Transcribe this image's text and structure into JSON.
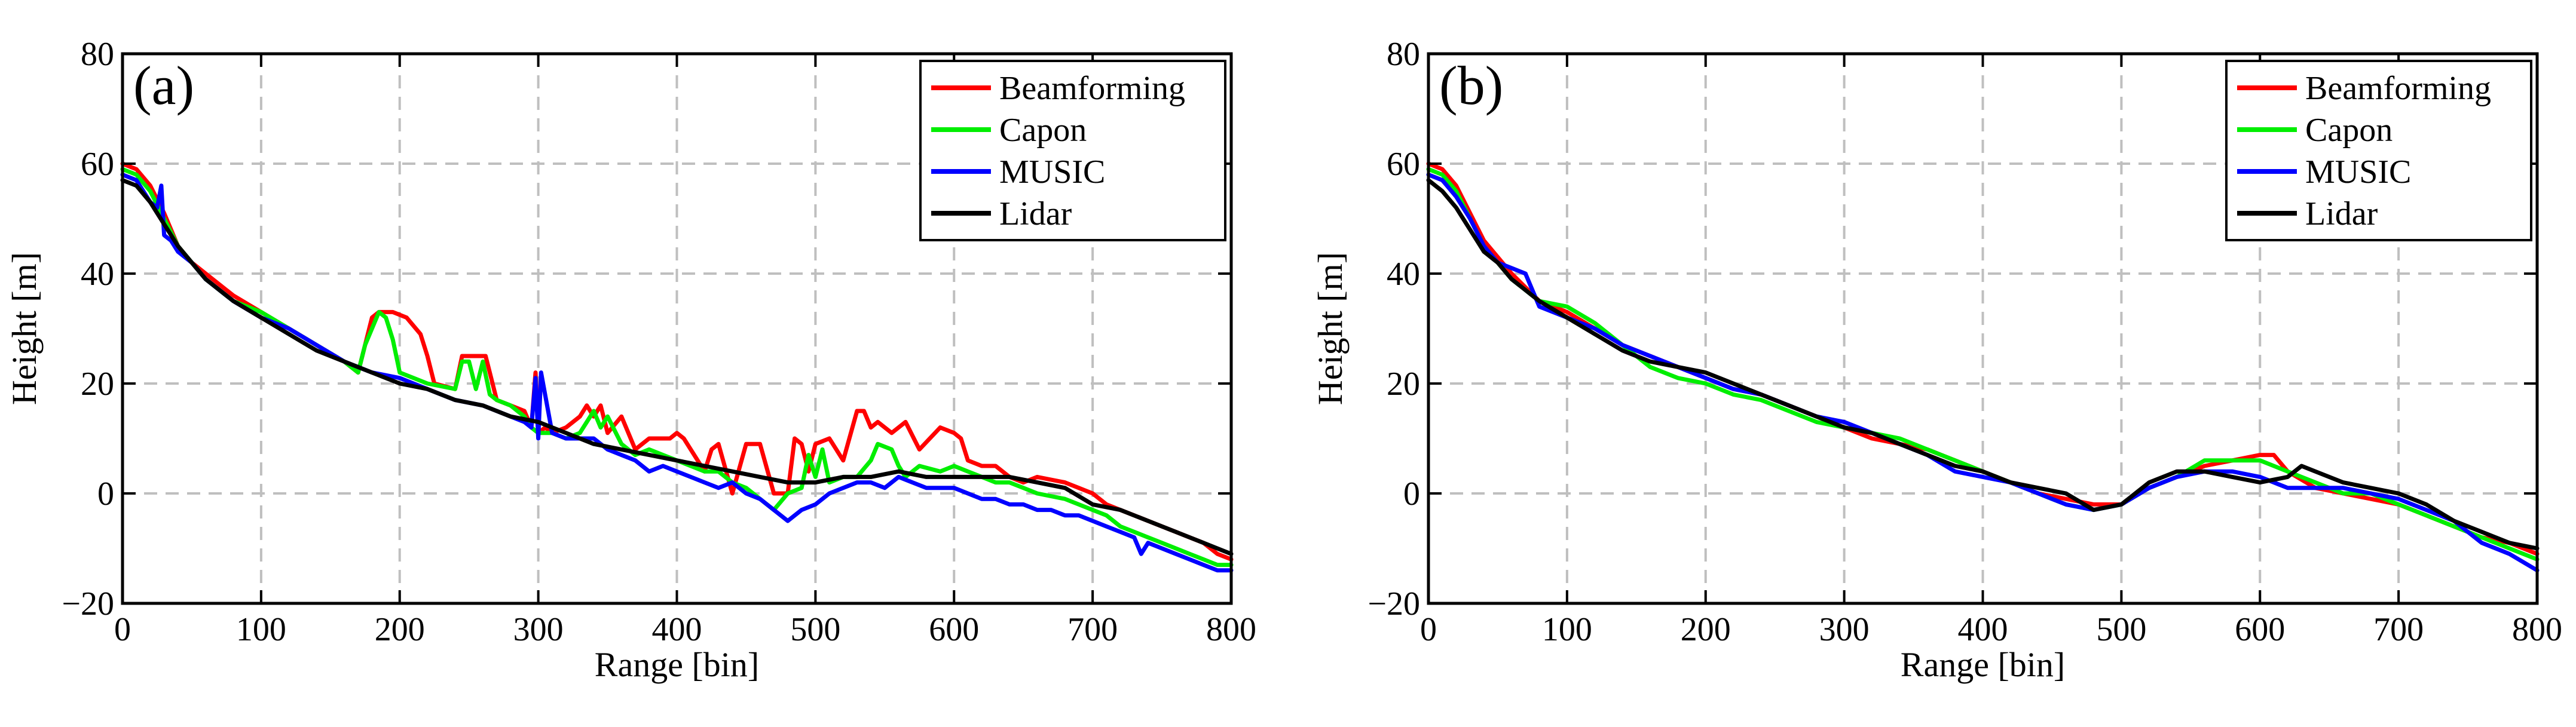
{
  "chart_data": [
    {
      "type": "line",
      "panel": "(a)",
      "xlabel": "Range [bin]",
      "ylabel": "Height [m]",
      "xlim": [
        0,
        800
      ],
      "ylim": [
        -20,
        80
      ],
      "xticks": [
        0,
        100,
        200,
        300,
        400,
        500,
        600,
        700,
        800
      ],
      "yticks": [
        -20,
        0,
        20,
        40,
        60,
        80
      ],
      "ytick_labels": [
        "−20",
        "0",
        "20",
        "40",
        "60",
        "80"
      ],
      "grid": true,
      "legend_position": "top-right",
      "series": [
        {
          "name": "Beamforming",
          "color": "#ff0000",
          "x": [
            0,
            10,
            20,
            30,
            40,
            50,
            60,
            80,
            100,
            120,
            140,
            160,
            170,
            175,
            180,
            185,
            195,
            205,
            215,
            220,
            225,
            240,
            245,
            250,
            258,
            262,
            270,
            280,
            290,
            295,
            298,
            300,
            305,
            310,
            320,
            330,
            335,
            340,
            345,
            350,
            360,
            370,
            380,
            390,
            395,
            400,
            405,
            410,
            420,
            425,
            430,
            440,
            450,
            460,
            470,
            480,
            485,
            490,
            495,
            500,
            510,
            520,
            530,
            535,
            540,
            545,
            555,
            565,
            575,
            590,
            600,
            605,
            610,
            620,
            630,
            640,
            650,
            660,
            680,
            690,
            700,
            710,
            720,
            730,
            740,
            750,
            760,
            770,
            780,
            790,
            800
          ],
          "y": [
            60,
            59,
            56,
            51,
            45,
            42,
            40,
            36,
            33,
            30,
            27,
            24,
            22,
            27,
            32,
            33,
            33,
            32,
            29,
            25,
            20,
            19,
            25,
            25,
            25,
            25,
            17,
            16,
            15,
            12,
            22,
            11,
            12,
            11,
            12,
            14,
            16,
            14,
            16,
            11,
            14,
            8,
            10,
            10,
            10,
            11,
            10,
            8,
            4,
            8,
            9,
            0,
            9,
            9,
            0,
            0,
            10,
            9,
            4,
            9,
            10,
            6,
            15,
            15,
            12,
            13,
            11,
            13,
            8,
            12,
            11,
            10,
            6,
            5,
            5,
            3,
            2,
            3,
            2,
            1,
            0,
            -2,
            -3,
            -4,
            -5,
            -6,
            -7,
            -8,
            -9,
            -11,
            -12
          ]
        },
        {
          "name": "Capon",
          "color": "#00ee00",
          "x": [
            0,
            10,
            20,
            30,
            40,
            50,
            60,
            80,
            100,
            120,
            140,
            160,
            170,
            175,
            180,
            185,
            190,
            195,
            200,
            210,
            220,
            240,
            245,
            250,
            255,
            260,
            265,
            270,
            280,
            290,
            295,
            300,
            310,
            320,
            330,
            340,
            345,
            350,
            360,
            370,
            380,
            390,
            400,
            410,
            420,
            430,
            440,
            450,
            460,
            470,
            480,
            490,
            495,
            500,
            505,
            510,
            520,
            530,
            540,
            545,
            555,
            560,
            565,
            575,
            590,
            600,
            610,
            620,
            630,
            640,
            650,
            660,
            680,
            690,
            700,
            710,
            720,
            730,
            740,
            750,
            760,
            770,
            780,
            790,
            800
          ],
          "y": [
            59,
            58,
            55,
            50,
            45,
            42,
            39,
            35,
            33,
            30,
            27,
            24,
            22,
            27,
            30,
            33,
            32,
            28,
            22,
            21,
            20,
            19,
            24,
            24,
            19,
            24,
            18,
            17,
            16,
            14,
            12,
            11,
            11,
            10,
            11,
            15,
            12,
            14,
            9,
            7,
            8,
            7,
            6,
            5,
            4,
            4,
            2,
            1,
            -1,
            -3,
            0,
            1,
            7,
            3,
            8,
            2,
            3,
            3,
            6,
            9,
            8,
            5,
            3,
            5,
            4,
            5,
            4,
            3,
            2,
            2,
            1,
            0,
            -1,
            -2,
            -3,
            -4,
            -6,
            -7,
            -8,
            -9,
            -10,
            -11,
            -12,
            -13,
            -13
          ]
        },
        {
          "name": "MUSIC",
          "color": "#0000ff",
          "x": [
            0,
            10,
            20,
            25,
            28,
            30,
            35,
            40,
            50,
            60,
            80,
            100,
            120,
            140,
            160,
            180,
            200,
            220,
            240,
            260,
            280,
            290,
            295,
            298,
            300,
            302,
            310,
            320,
            330,
            340,
            350,
            360,
            370,
            380,
            390,
            400,
            410,
            420,
            430,
            440,
            450,
            460,
            470,
            480,
            490,
            500,
            510,
            520,
            530,
            540,
            550,
            560,
            570,
            580,
            590,
            600,
            610,
            620,
            630,
            640,
            650,
            660,
            670,
            680,
            690,
            700,
            710,
            720,
            730,
            735,
            740,
            750,
            760,
            770,
            780,
            790,
            800
          ],
          "y": [
            58,
            57,
            53,
            52,
            56,
            47,
            46,
            44,
            42,
            39,
            35,
            32,
            30,
            27,
            24,
            22,
            21,
            19,
            17,
            16,
            14,
            13,
            12,
            21,
            10,
            22,
            11,
            10,
            10,
            10,
            8,
            7,
            6,
            4,
            5,
            4,
            3,
            2,
            1,
            2,
            0,
            -1,
            -3,
            -5,
            -3,
            -2,
            0,
            1,
            2,
            2,
            1,
            3,
            2,
            1,
            1,
            1,
            0,
            -1,
            -1,
            -2,
            -2,
            -3,
            -3,
            -4,
            -4,
            -5,
            -6,
            -7,
            -8,
            -11,
            -9,
            -10,
            -11,
            -12,
            -13,
            -14,
            -14
          ]
        },
        {
          "name": "Lidar",
          "color": "#000000",
          "x": [
            0,
            10,
            20,
            30,
            40,
            50,
            60,
            80,
            100,
            120,
            140,
            160,
            180,
            200,
            220,
            240,
            260,
            280,
            300,
            320,
            340,
            360,
            380,
            400,
            420,
            440,
            460,
            480,
            500,
            520,
            540,
            560,
            580,
            600,
            620,
            640,
            660,
            680,
            700,
            720,
            740,
            760,
            780,
            800
          ],
          "y": [
            57,
            56,
            53,
            49,
            45,
            42,
            39,
            35,
            32,
            29,
            26,
            24,
            22,
            20,
            19,
            17,
            16,
            14,
            13,
            11,
            9,
            8,
            7,
            6,
            5,
            4,
            3,
            2,
            2,
            3,
            3,
            4,
            3,
            3,
            3,
            3,
            2,
            1,
            -2,
            -3,
            -5,
            -7,
            -9,
            -11
          ]
        }
      ]
    },
    {
      "type": "line",
      "panel": "(b)",
      "xlabel": "Range [bin]",
      "ylabel": "Height [m]",
      "xlim": [
        0,
        800
      ],
      "ylim": [
        -20,
        80
      ],
      "xticks": [
        0,
        100,
        200,
        300,
        400,
        500,
        600,
        700,
        800
      ],
      "yticks": [
        -20,
        0,
        20,
        40,
        60,
        80
      ],
      "ytick_labels": [
        "−20",
        "0",
        "20",
        "40",
        "60",
        "80"
      ],
      "grid": true,
      "legend_position": "top-right",
      "series": [
        {
          "name": "Beamforming",
          "color": "#ff0000",
          "x": [
            0,
            10,
            20,
            30,
            40,
            50,
            60,
            80,
            100,
            120,
            140,
            160,
            180,
            200,
            220,
            240,
            260,
            280,
            300,
            320,
            340,
            360,
            380,
            400,
            420,
            440,
            460,
            480,
            500,
            520,
            540,
            560,
            580,
            600,
            610,
            620,
            640,
            660,
            680,
            700,
            720,
            740,
            760,
            780,
            800
          ],
          "y": [
            60,
            59,
            56,
            51,
            46,
            43,
            40,
            35,
            33,
            30,
            27,
            25,
            23,
            21,
            19,
            18,
            16,
            14,
            12,
            10,
            9,
            8,
            6,
            4,
            2,
            0,
            -1,
            -2,
            -2,
            1,
            3,
            5,
            6,
            7,
            7,
            4,
            1,
            0,
            -1,
            -2,
            -4,
            -6,
            -8,
            -9,
            -11
          ]
        },
        {
          "name": "Capon",
          "color": "#00ee00",
          "x": [
            0,
            10,
            20,
            30,
            40,
            50,
            60,
            80,
            100,
            120,
            140,
            160,
            180,
            200,
            220,
            240,
            260,
            280,
            300,
            320,
            340,
            360,
            380,
            400,
            420,
            440,
            460,
            480,
            500,
            520,
            540,
            560,
            580,
            600,
            620,
            640,
            660,
            680,
            700,
            720,
            740,
            760,
            780,
            800
          ],
          "y": [
            59,
            58,
            55,
            50,
            45,
            42,
            39,
            35,
            34,
            31,
            27,
            23,
            21,
            20,
            18,
            17,
            15,
            13,
            12,
            11,
            10,
            8,
            6,
            4,
            2,
            0,
            -2,
            -3,
            -2,
            1,
            3,
            6,
            6,
            6,
            4,
            2,
            0,
            0,
            -2,
            -4,
            -6,
            -8,
            -10,
            -12
          ]
        },
        {
          "name": "MUSIC",
          "color": "#0000ff",
          "x": [
            0,
            10,
            20,
            30,
            40,
            50,
            60,
            70,
            80,
            100,
            120,
            140,
            160,
            180,
            200,
            220,
            240,
            260,
            280,
            300,
            320,
            340,
            360,
            380,
            400,
            420,
            440,
            460,
            480,
            500,
            520,
            540,
            560,
            580,
            600,
            620,
            640,
            660,
            680,
            700,
            720,
            740,
            760,
            780,
            800
          ],
          "y": [
            58,
            57,
            54,
            50,
            45,
            42,
            41,
            40,
            34,
            32,
            30,
            27,
            25,
            23,
            21,
            19,
            18,
            16,
            14,
            13,
            11,
            9,
            7,
            4,
            3,
            2,
            0,
            -2,
            -3,
            -2,
            1,
            3,
            4,
            4,
            3,
            1,
            1,
            1,
            0,
            -1,
            -3,
            -5,
            -9,
            -11,
            -14
          ]
        },
        {
          "name": "Lidar",
          "color": "#000000",
          "x": [
            0,
            10,
            20,
            30,
            40,
            50,
            60,
            80,
            100,
            120,
            140,
            160,
            180,
            200,
            220,
            240,
            260,
            280,
            300,
            320,
            340,
            360,
            380,
            400,
            420,
            440,
            460,
            480,
            500,
            520,
            540,
            560,
            580,
            600,
            620,
            630,
            640,
            660,
            680,
            700,
            720,
            740,
            760,
            780,
            800
          ],
          "y": [
            57,
            55,
            52,
            48,
            44,
            42,
            39,
            35,
            32,
            29,
            26,
            24,
            23,
            22,
            20,
            18,
            16,
            14,
            12,
            11,
            9,
            7,
            5,
            4,
            2,
            1,
            0,
            -3,
            -2,
            2,
            4,
            4,
            3,
            2,
            3,
            5,
            4,
            2,
            1,
            0,
            -2,
            -5,
            -7,
            -9,
            -10
          ]
        }
      ]
    }
  ]
}
